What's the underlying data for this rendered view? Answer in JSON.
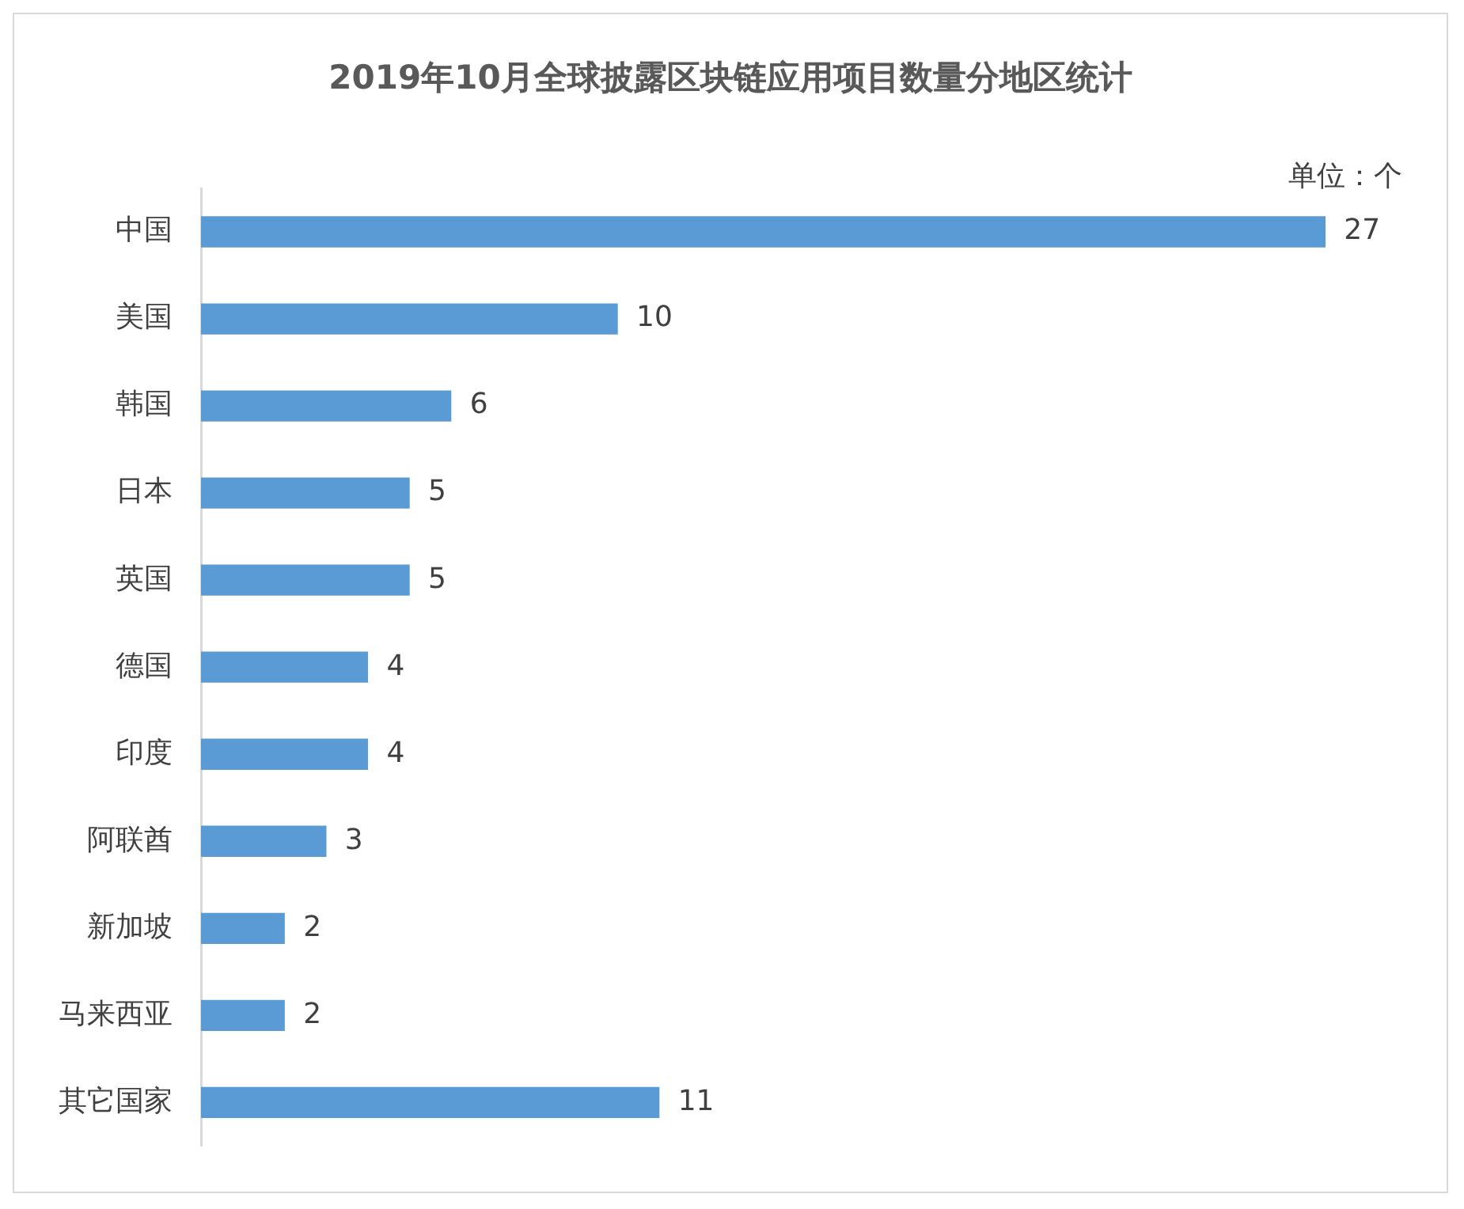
{
  "chart_data": {
    "type": "bar",
    "orientation": "horizontal",
    "title": "2019年10月全球披露区块链应用项目数量分地区统计",
    "categories": [
      "中国",
      "美国",
      "韩国",
      "日本",
      "英国",
      "德国",
      "印度",
      "阿联酋",
      "新加坡",
      "马来西亚",
      "其它国家"
    ],
    "values": [
      27,
      10,
      6,
      5,
      5,
      4,
      4,
      3,
      2,
      2,
      11
    ],
    "color": "#5b9bd5",
    "data_labels": true,
    "annotations": [
      "单位：个"
    ]
  }
}
